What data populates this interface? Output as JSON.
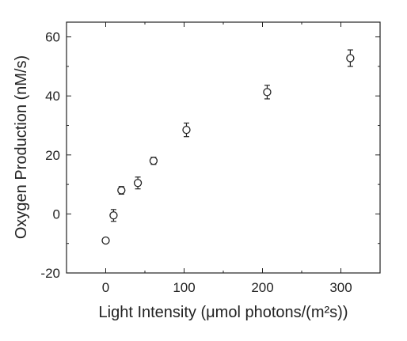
{
  "chart_data": {
    "type": "scatter",
    "xlabel": "Light Intensity (μmol photons/(m²s))",
    "ylabel": "Oxygen Production (nM/s)",
    "xlim": [
      -50,
      350
    ],
    "ylim": [
      -20,
      65
    ],
    "xticks": [
      0,
      100,
      200,
      300
    ],
    "yticks": [
      -20,
      0,
      20,
      40,
      60
    ],
    "xtick_labels": [
      "0",
      "100",
      "200",
      "300"
    ],
    "ytick_labels": [
      "-20",
      "0",
      "20",
      "40",
      "60"
    ],
    "grid": false,
    "points": [
      {
        "x": 0,
        "y": -9.0,
        "err": 0.8
      },
      {
        "x": 10,
        "y": -0.5,
        "err": 2.0
      },
      {
        "x": 20,
        "y": 8.0,
        "err": 1.3
      },
      {
        "x": 41,
        "y": 10.5,
        "err": 2.0
      },
      {
        "x": 61,
        "y": 18.0,
        "err": 1.2
      },
      {
        "x": 103,
        "y": 28.5,
        "err": 2.3
      },
      {
        "x": 206,
        "y": 41.3,
        "err": 2.3
      },
      {
        "x": 312,
        "y": 52.8,
        "err": 2.8
      }
    ],
    "style": {
      "marker_color": "#222222",
      "axis_color": "#222222"
    }
  }
}
